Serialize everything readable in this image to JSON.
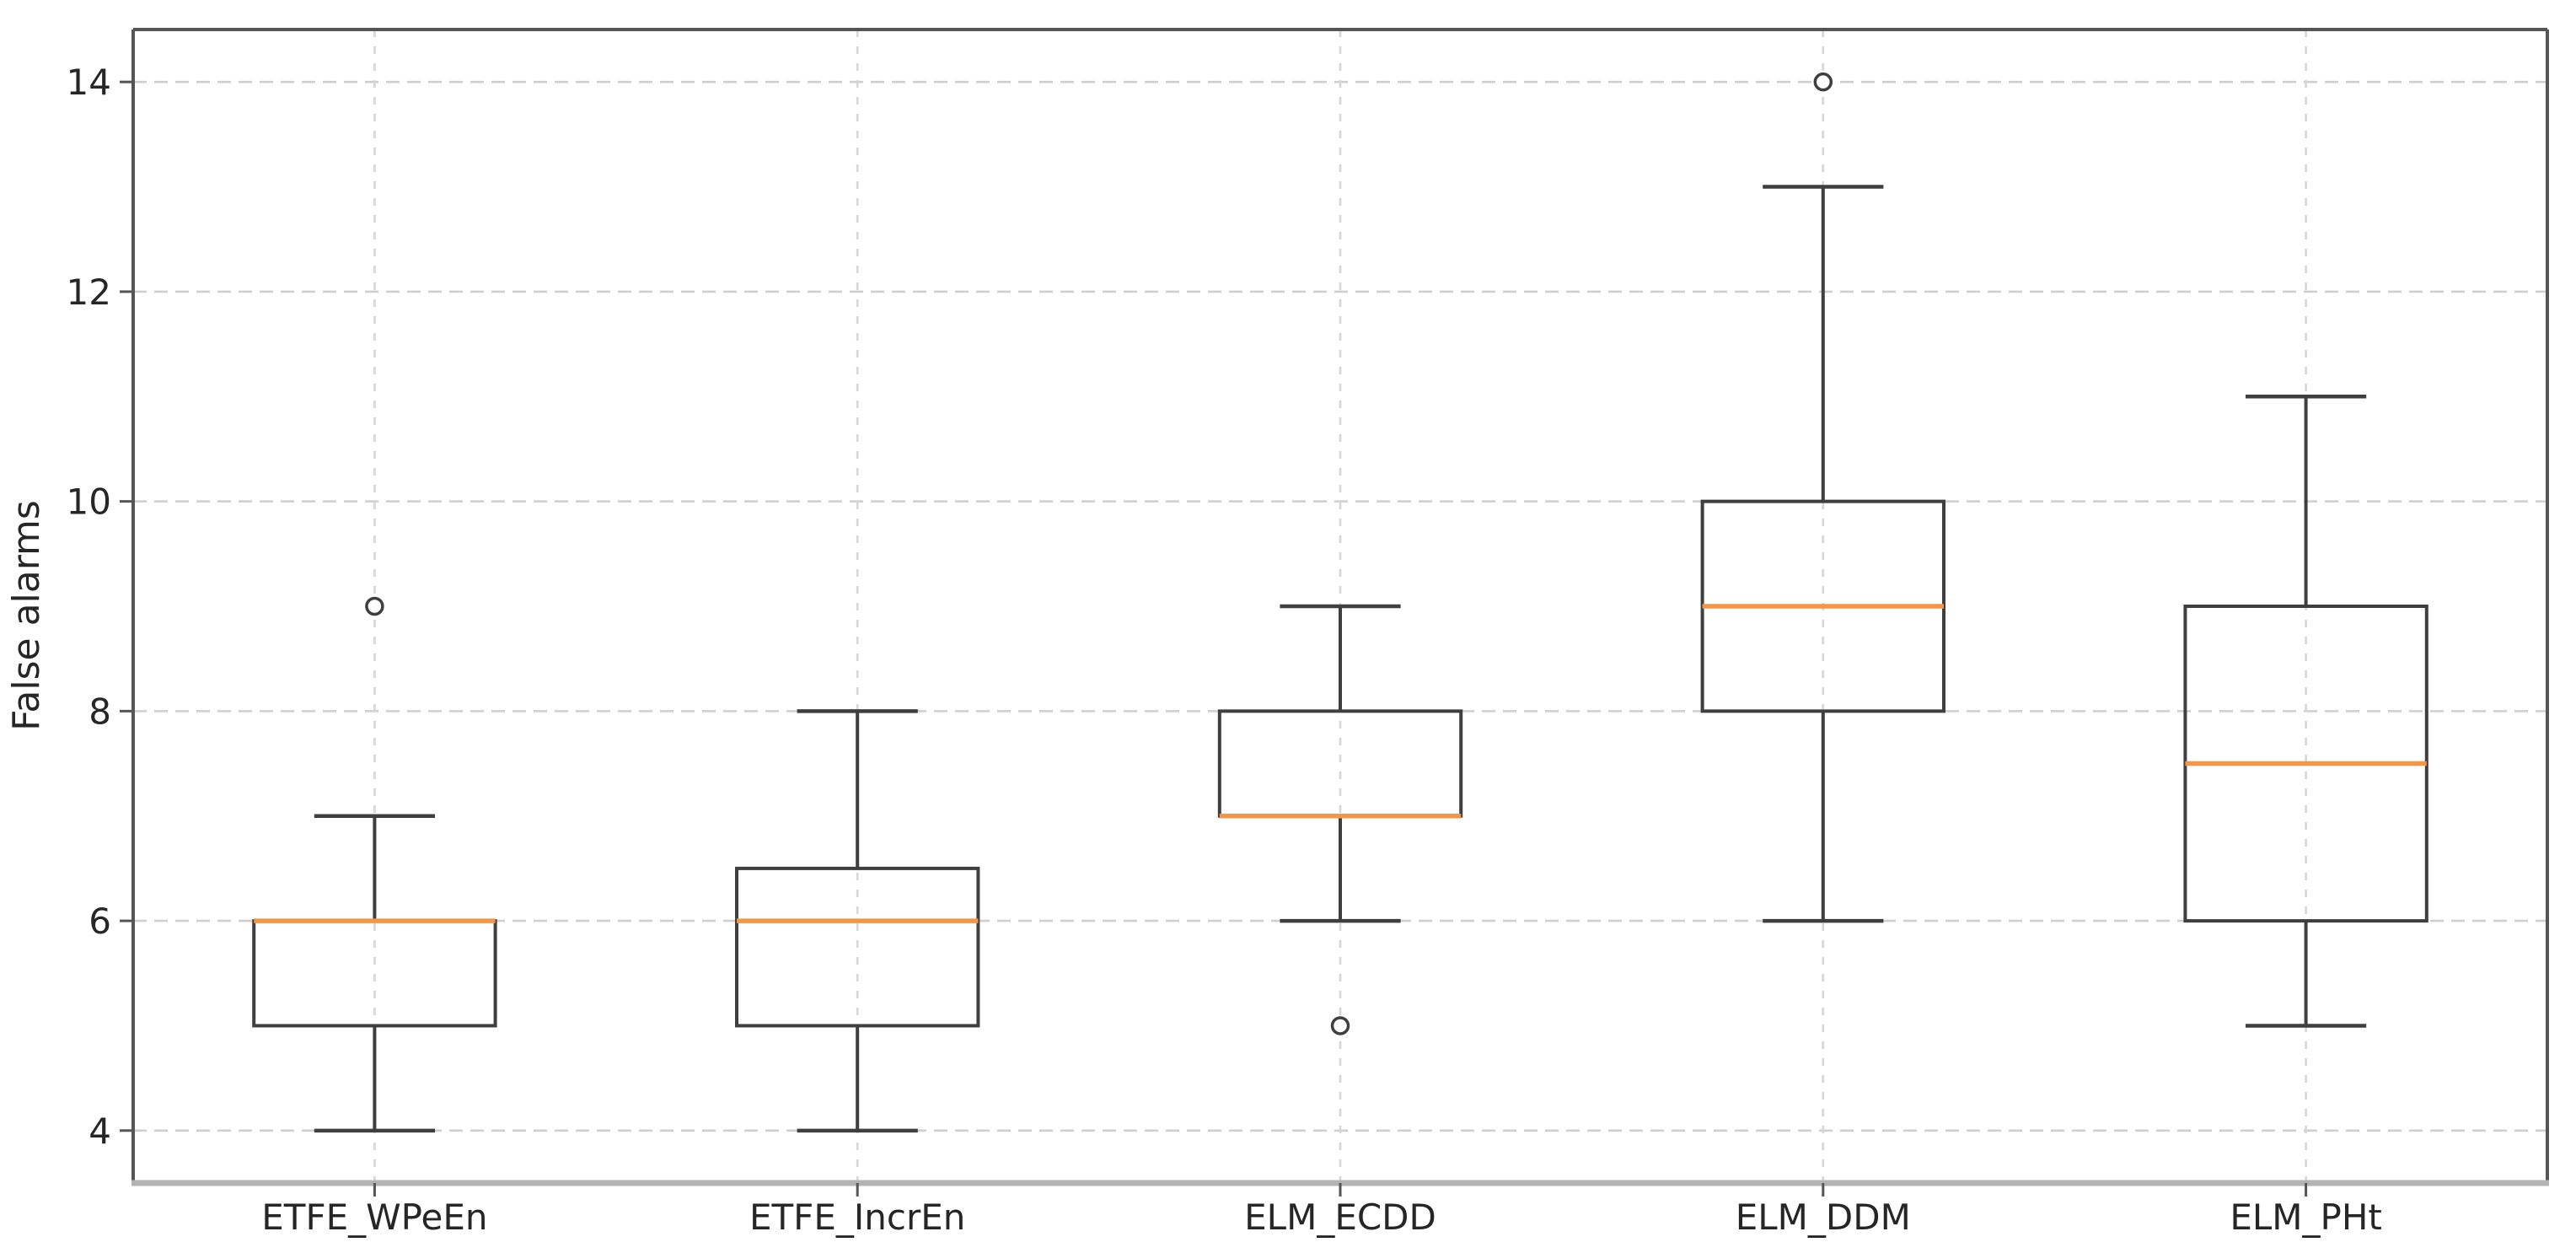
{
  "figure": {
    "background": "#ffffff"
  },
  "chart_data": {
    "type": "box",
    "title": "",
    "xlabel": "",
    "ylabel": "False alarms",
    "categories": [
      "ETFE_WPeEn",
      "ETFE_IncrEn",
      "ELM_ECDD",
      "ELM_DDM",
      "ELM_PHt"
    ],
    "boxes": [
      {
        "label": "ETFE_WPeEn",
        "whislo": 4,
        "q1": 5,
        "med": 6,
        "q3": 6,
        "whishi": 7,
        "fliers": [
          9
        ]
      },
      {
        "label": "ETFE_IncrEn",
        "whislo": 4,
        "q1": 5,
        "med": 6,
        "q3": 6.5,
        "whishi": 8,
        "fliers": []
      },
      {
        "label": "ELM_ECDD",
        "whislo": 6,
        "q1": 7,
        "med": 7,
        "q3": 8,
        "whishi": 9,
        "fliers": [
          5
        ]
      },
      {
        "label": "ELM_DDM",
        "whislo": 6,
        "q1": 8,
        "med": 9,
        "q3": 10,
        "whishi": 13,
        "fliers": [
          14
        ]
      },
      {
        "label": "ELM_PHt",
        "whislo": 5,
        "q1": 6,
        "med": 7.5,
        "q3": 9,
        "whishi": 11,
        "fliers": []
      }
    ],
    "yticks": [
      4,
      6,
      8,
      10,
      12,
      14
    ],
    "ylim": [
      3.5,
      14.5
    ],
    "grid": {
      "show": true,
      "style": "dashed",
      "axes": "both"
    },
    "legend_position": "none"
  },
  "colors": {
    "median": "#f59646",
    "box_edge": "#3f3f3f",
    "whisker": "#3f3f3f",
    "flier_edge": "#3f3f3f",
    "grid_h": "#cfcfcf",
    "grid_v": "#d6d6d6",
    "frame": "#555555",
    "axis_bottom": "#b3b3b3",
    "tick": "#555555",
    "text": "#262626"
  }
}
